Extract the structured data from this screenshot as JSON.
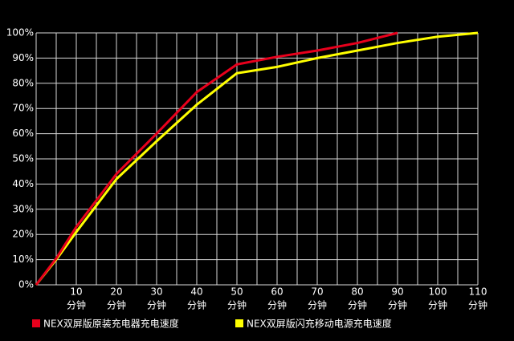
{
  "chart_data": {
    "type": "line",
    "x": [
      0,
      5,
      10,
      15,
      20,
      25,
      30,
      35,
      40,
      45,
      50,
      55,
      60,
      65,
      70,
      75,
      80,
      85,
      90,
      95,
      100,
      105,
      110
    ],
    "series": [
      {
        "name": "NEX双屏版原装充电器充电速度",
        "color": "#e8001c",
        "values": [
          0,
          10.5,
          23,
          null,
          44,
          null,
          60,
          null,
          76.5,
          null,
          87.5,
          null,
          90.5,
          null,
          93,
          null,
          96,
          null,
          100,
          null,
          null,
          null,
          null
        ]
      },
      {
        "name": "NEX双屏版闪充移动电源充电速度",
        "color": "#ffff00",
        "values": [
          0,
          10,
          21,
          null,
          42,
          null,
          57,
          null,
          71.5,
          null,
          84,
          null,
          86.5,
          null,
          90,
          null,
          93,
          null,
          96,
          null,
          98.5,
          null,
          100
        ]
      }
    ],
    "xlim": [
      0,
      110
    ],
    "xticks": [
      10,
      20,
      30,
      40,
      50,
      60,
      70,
      80,
      90,
      100,
      110
    ],
    "xtick_unit": "分钟",
    "ylim": [
      0,
      100
    ],
    "yticks": [
      {
        "value": 0,
        "label": "0%"
      },
      {
        "value": 10,
        "label": "10%"
      },
      {
        "value": 20,
        "label": "20%"
      },
      {
        "value": 30,
        "label": "30%"
      },
      {
        "value": 40,
        "label": "40%"
      },
      {
        "value": 50,
        "label": "50%"
      },
      {
        "value": 60,
        "label": "60%"
      },
      {
        "value": 70,
        "label": "70%"
      },
      {
        "value": 80,
        "label": "80%"
      },
      {
        "value": 90,
        "label": "90%"
      },
      {
        "value": 100,
        "label": "100%"
      }
    ],
    "grid": true
  }
}
